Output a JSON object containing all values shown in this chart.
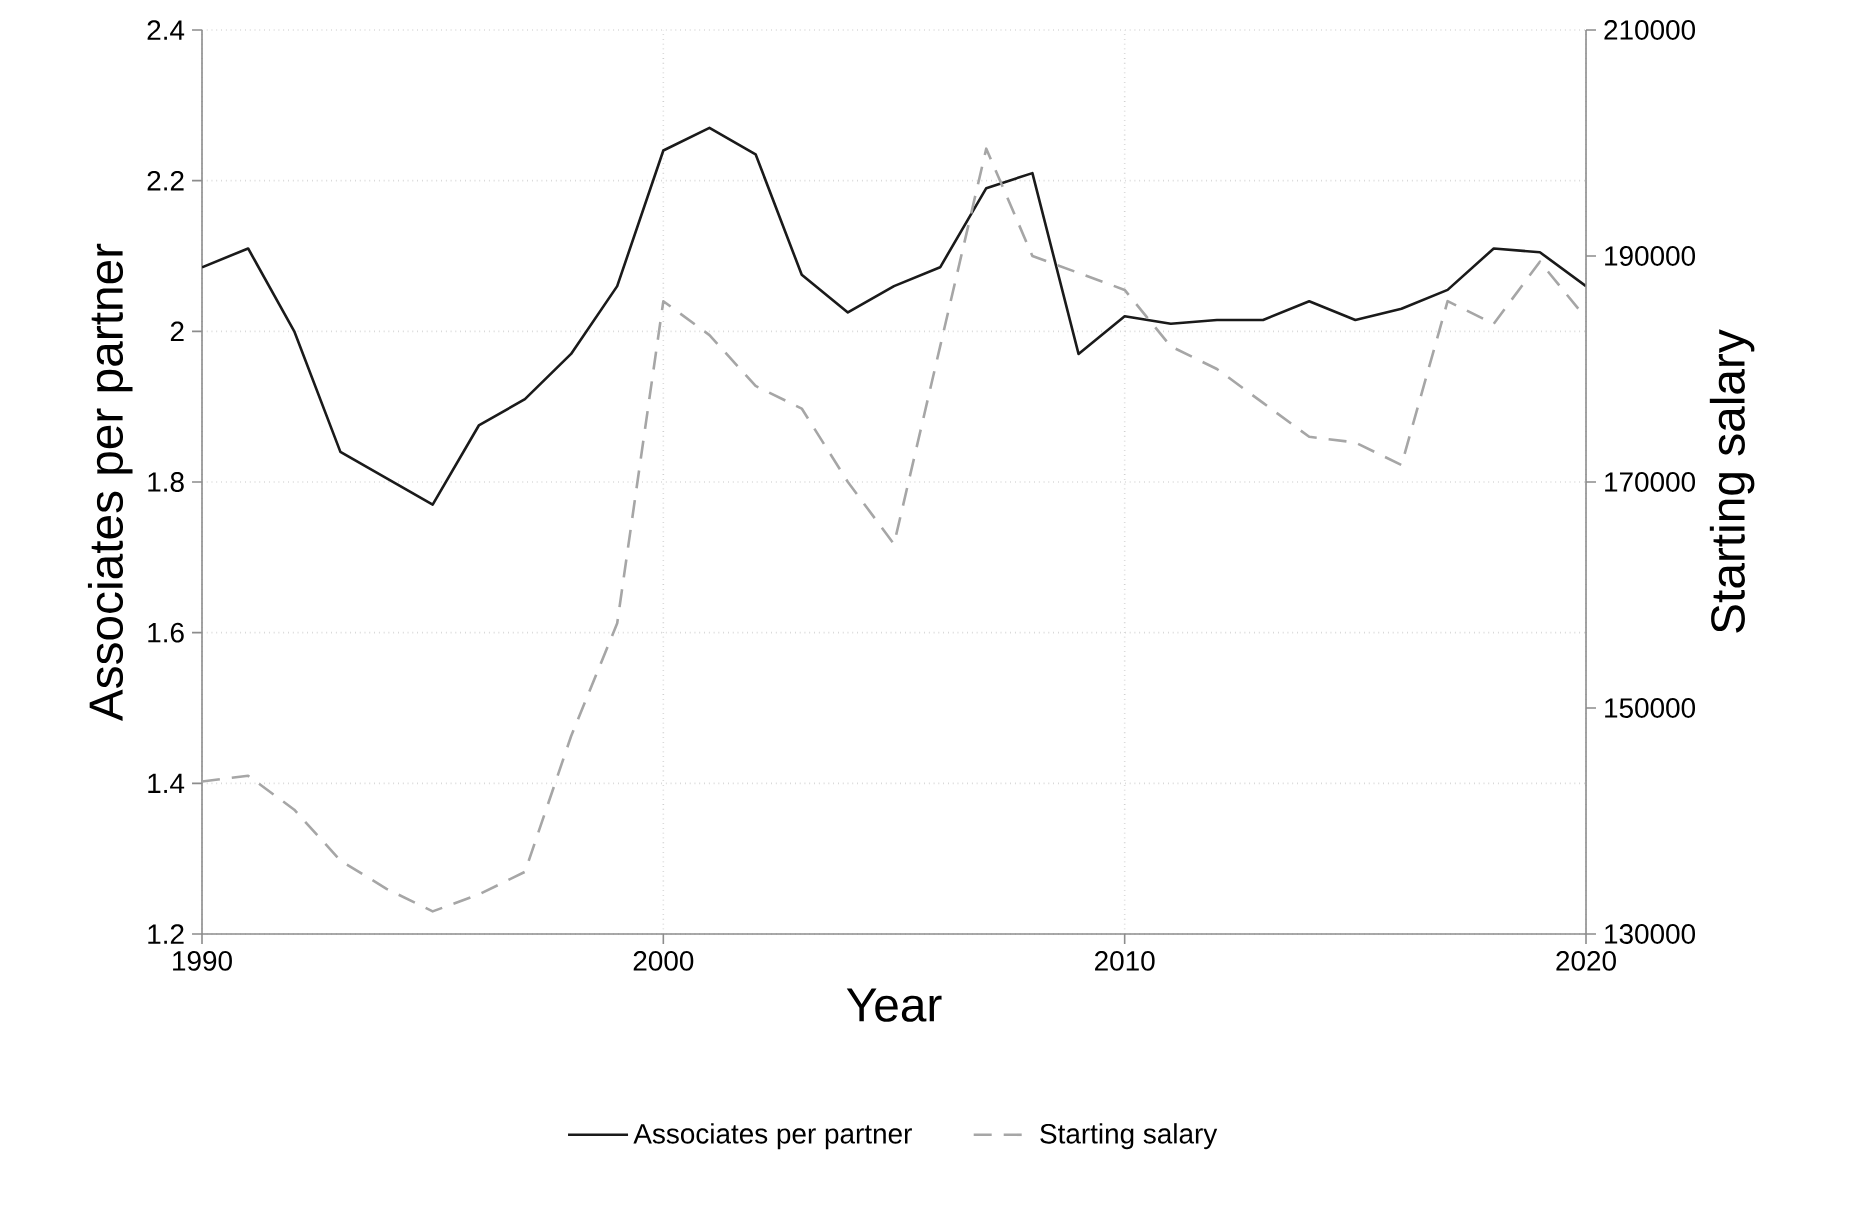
{
  "chart_data": {
    "type": "line",
    "xlabel": "Year",
    "ylabel": "Associates per partner",
    "y2label": "Starting salary",
    "x": [
      1990,
      1991,
      1992,
      1993,
      1994,
      1995,
      1996,
      1997,
      1998,
      1999,
      2000,
      2001,
      2002,
      2003,
      2004,
      2005,
      2006,
      2007,
      2008,
      2009,
      2010,
      2011,
      2012,
      2013,
      2014,
      2015,
      2016,
      2017,
      2018,
      2019,
      2020
    ],
    "series": [
      {
        "name": "Associates per partner",
        "color": "#1a1a1a",
        "line_style": "solid",
        "values": [
          2.085,
          2.11,
          2.0,
          1.84,
          1.805,
          1.77,
          1.875,
          1.91,
          1.97,
          2.06,
          2.24,
          2.27,
          2.235,
          2.075,
          2.025,
          2.06,
          2.085,
          2.19,
          2.21,
          1.97,
          2.02,
          2.01,
          2.015,
          2.015,
          2.04,
          2.015,
          2.03,
          2.055,
          2.11,
          2.105,
          2.06
        ]
      },
      {
        "name": "Starting salary",
        "color": "#a6a6a6",
        "line_style": "dashed",
        "axis": "y2",
        "values": [
          143500,
          144000,
          141000,
          136500,
          134000,
          132000,
          133500,
          135500,
          147500,
          157500,
          186000,
          183000,
          178500,
          176500,
          170000,
          164500,
          182000,
          199500,
          190000,
          188500,
          187000,
          182000,
          180000,
          177000,
          174000,
          173500,
          171500,
          186000,
          184000,
          189500,
          184500
        ]
      }
    ],
    "xlim": [
      1990,
      2020
    ],
    "xticks": [
      1990,
      2000,
      2010,
      2020
    ],
    "ylim": [
      1.2,
      2.4
    ],
    "yticks": [
      1.2,
      1.4,
      1.6,
      1.8,
      2,
      2.2,
      2.4
    ],
    "y2lim": [
      130000,
      210000
    ],
    "y2ticks": [
      130000,
      150000,
      170000,
      190000,
      210000
    ],
    "grid": true,
    "legend": "bottom",
    "marker": "none"
  }
}
